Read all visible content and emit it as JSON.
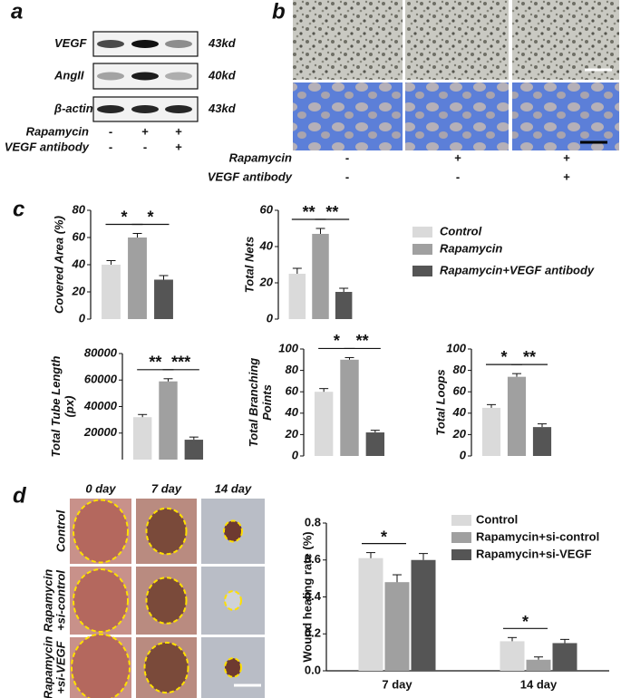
{
  "panel_a": {
    "label": "a",
    "rows": [
      {
        "name": "VEGF",
        "size": "43kd"
      },
      {
        "name": "AngII",
        "size": "40kd"
      },
      {
        "name": "β-actin",
        "size": "43kd"
      }
    ],
    "treatments": [
      {
        "name": "Rapamycin",
        "signs": [
          "-",
          "+",
          "+"
        ]
      },
      {
        "name": "VEGF antibody",
        "signs": [
          "-",
          "-",
          "+"
        ]
      }
    ]
  },
  "panel_b": {
    "label": "b",
    "treatments": [
      {
        "name": "Rapamycin",
        "signs": [
          "-",
          "+",
          "+"
        ]
      },
      {
        "name": "VEGF antibody",
        "signs": [
          "-",
          "-",
          "+"
        ]
      }
    ]
  },
  "panel_c": {
    "label": "c",
    "legend": [
      {
        "name": "Control",
        "color": "#dadada"
      },
      {
        "name": "Rapamycin",
        "color": "#a0a0a0"
      },
      {
        "name": "Rapamycin+VEGF antibody",
        "color": "#555555"
      }
    ]
  },
  "panel_d": {
    "label": "d",
    "columns": [
      "0 day",
      "7 day",
      "14 day"
    ],
    "rows": [
      [
        "Control"
      ],
      [
        "Rapamycin",
        "+si-control"
      ],
      [
        "Rapamycin",
        "+si-VEGF"
      ]
    ]
  },
  "chart_data": [
    {
      "type": "bar",
      "ylabel": [
        "Covered Area (%)"
      ],
      "ylim": [
        0,
        80
      ],
      "yticks": [
        0,
        20,
        40,
        60,
        80
      ],
      "values": [
        40,
        60,
        29
      ],
      "errors": [
        3,
        3,
        3
      ],
      "significance": [
        "*",
        "*"
      ]
    },
    {
      "type": "bar",
      "ylabel": [
        "Total Nets"
      ],
      "ylim": [
        0,
        60
      ],
      "yticks": [
        0,
        20,
        40,
        60
      ],
      "values": [
        25,
        47,
        15
      ],
      "errors": [
        3,
        3,
        2
      ],
      "significance": [
        "**",
        "**"
      ]
    },
    {
      "type": "bar",
      "ylabel": [
        "Total Tube Length",
        "(px)"
      ],
      "ylim": [
        0,
        80000
      ],
      "yticks": [
        20000,
        40000,
        60000,
        80000
      ],
      "values": [
        32000,
        59000,
        15000
      ],
      "errors": [
        2000,
        2000,
        2000
      ],
      "significance": [
        "**",
        "***"
      ]
    },
    {
      "type": "bar",
      "ylabel": [
        "Total Branching",
        "Points"
      ],
      "ylim": [
        0,
        100
      ],
      "yticks": [
        0,
        20,
        40,
        60,
        80,
        100
      ],
      "values": [
        60,
        90,
        22
      ],
      "errors": [
        3,
        2,
        2
      ],
      "significance": [
        "*",
        "**"
      ]
    },
    {
      "type": "bar",
      "ylabel": [
        "Total Loops"
      ],
      "ylim": [
        0,
        100
      ],
      "yticks": [
        0,
        20,
        40,
        60,
        80,
        100
      ],
      "values": [
        45,
        74,
        27
      ],
      "errors": [
        3,
        3,
        3
      ],
      "significance": [
        "*",
        "**"
      ]
    },
    {
      "type": "grouped_bar",
      "ylabel": [
        "Wound healing rate (%)"
      ],
      "ylim": [
        0,
        0.8
      ],
      "yticks": [
        {
          "value": 0,
          "label": "0.0"
        },
        0.2,
        0.4,
        0.6,
        0.8
      ],
      "categories": [
        "7 day",
        "14 day"
      ],
      "series": [
        {
          "name": "Control",
          "color": "#dadada",
          "values": [
            0.61,
            0.16
          ],
          "errors": [
            0.03,
            0.02
          ]
        },
        {
          "name": "Rapamycin+si-control",
          "color": "#a0a0a0",
          "values": [
            0.48,
            0.06
          ],
          "errors": [
            0.04,
            0.015
          ]
        },
        {
          "name": "Rapamycin+si-VEGF",
          "color": "#555555",
          "values": [
            0.6,
            0.15
          ],
          "errors": [
            0.035,
            0.02
          ]
        }
      ],
      "significance": [
        "*",
        "*"
      ]
    }
  ]
}
